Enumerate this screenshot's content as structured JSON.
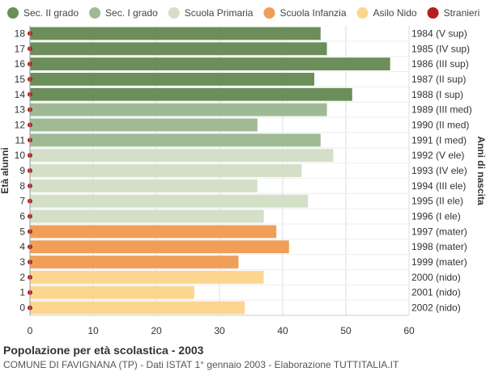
{
  "footer": {
    "title": "Popolazione per età scolastica - 2003",
    "subtitle": "COMUNE DI FAVIGNANA (TP) - Dati ISTAT 1° gennaio 2003 - Elaborazione TUTTITALIA.IT"
  },
  "chart_data": {
    "type": "bar",
    "orientation": "horizontal",
    "ylabel": "Età alunni",
    "ylabel_right": "Anni di nascita",
    "xlim": [
      0,
      60
    ],
    "xticks": [
      0,
      10,
      20,
      30,
      40,
      50,
      60
    ],
    "grid": true,
    "legend_position": "top",
    "legend": [
      {
        "name": "Sec. II grado",
        "color": "#6b8e5a"
      },
      {
        "name": "Sec. I grado",
        "color": "#9fba92"
      },
      {
        "name": "Scuola Primaria",
        "color": "#d3dfc7"
      },
      {
        "name": "Scuola Infanzia",
        "color": "#ef9f58"
      },
      {
        "name": "Asilo Nido",
        "color": "#fcd68f"
      },
      {
        "name": "Stranieri",
        "color": "#b71c1c"
      }
    ],
    "rows": [
      {
        "age": "18",
        "birth": "1984 (V sup)",
        "value": 46,
        "group": 0,
        "stranieri": 0
      },
      {
        "age": "17",
        "birth": "1985 (IV sup)",
        "value": 47,
        "group": 0,
        "stranieri": 0
      },
      {
        "age": "16",
        "birth": "1986 (III sup)",
        "value": 57,
        "group": 0,
        "stranieri": 0
      },
      {
        "age": "15",
        "birth": "1987 (II sup)",
        "value": 45,
        "group": 0,
        "stranieri": 0
      },
      {
        "age": "14",
        "birth": "1988 (I sup)",
        "value": 51,
        "group": 0,
        "stranieri": 0
      },
      {
        "age": "13",
        "birth": "1989 (III med)",
        "value": 47,
        "group": 1,
        "stranieri": 0
      },
      {
        "age": "12",
        "birth": "1990 (II med)",
        "value": 36,
        "group": 1,
        "stranieri": 0
      },
      {
        "age": "11",
        "birth": "1991 (I med)",
        "value": 46,
        "group": 1,
        "stranieri": 0
      },
      {
        "age": "10",
        "birth": "1992 (V ele)",
        "value": 48,
        "group": 2,
        "stranieri": 0
      },
      {
        "age": "9",
        "birth": "1993 (IV ele)",
        "value": 43,
        "group": 2,
        "stranieri": 0
      },
      {
        "age": "8",
        "birth": "1994 (III ele)",
        "value": 36,
        "group": 2,
        "stranieri": 0
      },
      {
        "age": "7",
        "birth": "1995 (II ele)",
        "value": 44,
        "group": 2,
        "stranieri": 0
      },
      {
        "age": "6",
        "birth": "1996 (I ele)",
        "value": 37,
        "group": 2,
        "stranieri": 0
      },
      {
        "age": "5",
        "birth": "1997 (mater)",
        "value": 39,
        "group": 3,
        "stranieri": 0
      },
      {
        "age": "4",
        "birth": "1998 (mater)",
        "value": 41,
        "group": 3,
        "stranieri": 0
      },
      {
        "age": "3",
        "birth": "1999 (mater)",
        "value": 33,
        "group": 3,
        "stranieri": 0
      },
      {
        "age": "2",
        "birth": "2000 (nido)",
        "value": 37,
        "group": 4,
        "stranieri": 0
      },
      {
        "age": "1",
        "birth": "2001 (nido)",
        "value": 26,
        "group": 4,
        "stranieri": 0
      },
      {
        "age": "0",
        "birth": "2002 (nido)",
        "value": 34,
        "group": 4,
        "stranieri": 0
      }
    ]
  }
}
